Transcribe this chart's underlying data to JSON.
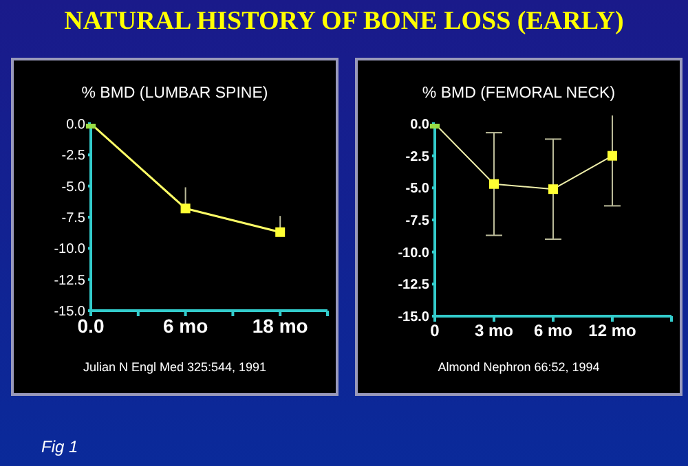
{
  "chart_data": [
    {
      "type": "other",
      "title": "NATURAL HISTORY OF BONE LOSS (EARLY)",
      "annotations": [
        "Fig 1"
      ]
    },
    {
      "type": "line",
      "title": "% BMD (LUMBAR SPINE)",
      "categories": [
        "0.0",
        null,
        "6 mo",
        null,
        "18 mo",
        null
      ],
      "series": [
        {
          "color": "#ffff66",
          "colors": [
            "#99dd44",
            null,
            "#ffff33",
            null,
            "#ffff33",
            null
          ],
          "values": [
            0,
            null,
            -6.8,
            null,
            -8.7,
            null
          ],
          "errors": [
            null,
            null,
            [
              -6.8,
              -5.1
            ],
            null,
            [
              -8.7,
              -7.4
            ],
            null
          ]
        }
      ],
      "ylim": [
        -15,
        0
      ],
      "yticks": [
        {
          "value": 0,
          "label": "0.0"
        },
        -2.5,
        {
          "value": -5,
          "label": "-5.0"
        },
        -7.5,
        {
          "value": -10,
          "label": "-10.0"
        },
        -12.5,
        {
          "value": -15,
          "label": "-15.0"
        }
      ],
      "marker": "square",
      "grid": false,
      "legend": false,
      "annotations": [
        "Julian N Engl Med 325:544, 1991"
      ]
    },
    {
      "type": "line",
      "title": "% BMD (FEMORAL NECK)",
      "categories": [
        "0",
        "3 mo",
        "6 mo",
        "12 mo",
        null
      ],
      "series": [
        {
          "color": "#eeeeaa",
          "colors": [
            "#99dd44",
            "#ffff33",
            "#ffff33",
            "#ffff33",
            null
          ],
          "values": [
            0,
            -4.7,
            -5.1,
            -2.5,
            null
          ],
          "errors": [
            null,
            4.0,
            3.9,
            3.9,
            null
          ]
        }
      ],
      "ylim": [
        -15,
        0
      ],
      "yticks": [
        {
          "value": 0,
          "label": "0.0"
        },
        -2.5,
        {
          "value": -5,
          "label": "-5.0"
        },
        -7.5,
        {
          "value": -10,
          "label": "-10.0"
        },
        -12.5,
        {
          "value": -15,
          "label": "-15.0"
        }
      ],
      "marker": "square",
      "grid": false,
      "legend": false,
      "annotations": [
        "Almond Nephron 66:52, 1994"
      ]
    }
  ]
}
